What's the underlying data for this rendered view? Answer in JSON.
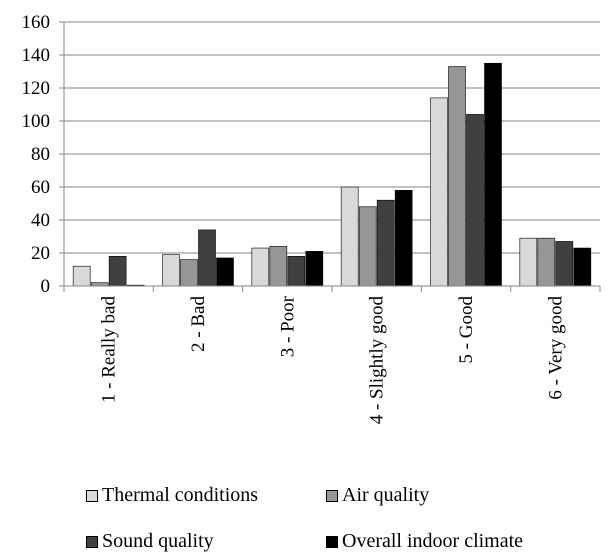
{
  "chart_data": {
    "type": "bar",
    "categories": [
      "1 - Really bad",
      "2 - Bad",
      "3 - Poor",
      "4 - Slightly good",
      "5 - Good",
      "6 - Very good"
    ],
    "series": [
      {
        "name": "Thermal conditions",
        "values": [
          12,
          19,
          23,
          60,
          114,
          29
        ],
        "color": "#d9d9d9"
      },
      {
        "name": "Air quality",
        "values": [
          2,
          16,
          24,
          48,
          133,
          29
        ],
        "color": "#969696"
      },
      {
        "name": "Sound quality",
        "values": [
          18,
          34,
          18,
          52,
          104,
          27
        ],
        "color": "#404040"
      },
      {
        "name": "Overall indoor climate",
        "values": [
          0.5,
          17,
          21,
          58,
          135,
          23
        ],
        "color": "#000000"
      }
    ],
    "yticks": [
      0,
      20,
      40,
      60,
      80,
      100,
      120,
      140,
      160
    ],
    "ylim": [
      0,
      160
    ],
    "grid": "horizontal",
    "legend_position": "bottom"
  }
}
